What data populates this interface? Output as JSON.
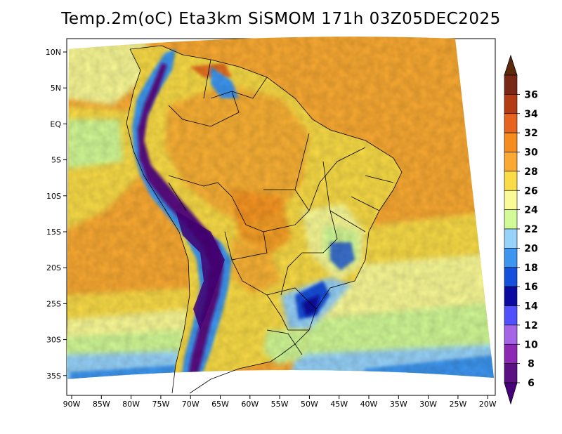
{
  "title": "Temp.2m(oC) Eta3km SiSMOM 171h 03Z05DEC2025",
  "map": {
    "lon_ticks": [
      "90W",
      "85W",
      "80W",
      "75W",
      "70W",
      "65W",
      "60W",
      "55W",
      "50W",
      "45W",
      "40W",
      "35W",
      "30W",
      "25W",
      "20W"
    ],
    "lat_ticks": [
      "10N",
      "5N",
      "EQ",
      "5S",
      "10S",
      "15S",
      "20S",
      "25S",
      "30S",
      "35S"
    ]
  },
  "colorbar": {
    "levels": [
      "6",
      "8",
      "10",
      "12",
      "14",
      "16",
      "18",
      "20",
      "22",
      "24",
      "26",
      "28",
      "30",
      "32",
      "34",
      "36"
    ],
    "colors": [
      "#5a0f82",
      "#8c28b4",
      "#a564e6",
      "#5050ff",
      "#0a0aa0",
      "#1450dc",
      "#3c96f0",
      "#96d2fa",
      "#d2fa96",
      "#fafa96",
      "#fadc46",
      "#faaa32",
      "#f58c1e",
      "#e6641e",
      "#b43c14",
      "#782814"
    ],
    "min_color": "#46007a",
    "max_color": "#5a280a"
  }
}
